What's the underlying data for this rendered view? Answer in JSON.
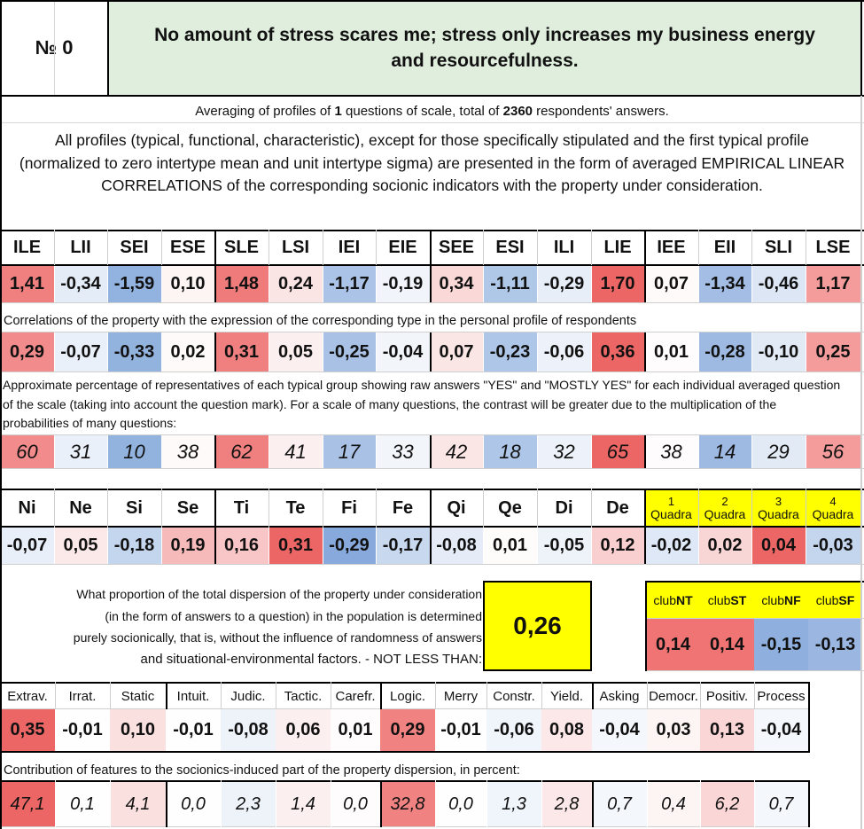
{
  "header": {
    "number_label": "№ 0",
    "title": "No amount of stress scares me; stress only increases my business energy and resourcefulness."
  },
  "averaging": {
    "prefix": "Averaging of profiles of ",
    "questions": "1",
    "middle": " questions of scale, total of ",
    "respondents": "2360",
    "suffix": " respondents' answers."
  },
  "intro_text": "All profiles (typical, functional, characteristic), except for those specifically stipulated and the first typical profile (normalized to zero intertype mean and unit intertype sigma) are presented in the form of averaged EMPIRICAL LINEAR CORRELATIONS of the corresponding socionic indicators with the property under consideration.",
  "colors": {
    "title_bg": "#dfeedd",
    "yellow": "#ffff00"
  },
  "types": {
    "headers": [
      "ILE",
      "LII",
      "SEI",
      "ESE",
      "SLE",
      "LSI",
      "IEI",
      "EIE",
      "SEE",
      "ESI",
      "ILI",
      "LIE",
      "IEE",
      "EII",
      "SLI",
      "LSE"
    ],
    "profile": [
      "1,41",
      "-0,34",
      "-1,59",
      "0,10",
      "1,48",
      "0,24",
      "-1,17",
      "-0,19",
      "0,34",
      "-1,11",
      "-0,29",
      "1,70",
      "0,07",
      "-1,34",
      "-0,46",
      "1,17"
    ],
    "profile_colors": [
      "#f08080",
      "#e4ecf8",
      "#92b2df",
      "#fdf4f4",
      "#ef7b7b",
      "#fbe4e4",
      "#aac3e6",
      "#f1f5fb",
      "#fad8d8",
      "#b0c8e8",
      "#e8eef8",
      "#ec6666",
      "#fefafa",
      "#a3bde4",
      "#dce6f4",
      "#f49b9b"
    ],
    "correlations_note": "Correlations of the property with the expression of the corresponding type in the personal profile of respondents",
    "correlations": [
      "0,29",
      "-0,07",
      "-0,33",
      "0,02",
      "0,31",
      "0,05",
      "-0,25",
      "-0,04",
      "0,07",
      "-0,23",
      "-0,06",
      "0,36",
      "0,01",
      "-0,28",
      "-0,10",
      "0,25"
    ],
    "correlation_colors": [
      "#f28c8c",
      "#eaf0f9",
      "#93b3df",
      "#fefafa",
      "#f08080",
      "#fcefef",
      "#a8c1e5",
      "#f2f6fb",
      "#fbe6e6",
      "#aec6e7",
      "#edf2fa",
      "#ec6666",
      "#fefcfc",
      "#9eb9e2",
      "#e2eaf6",
      "#f49b9b"
    ],
    "percentage_note": "Approximate percentage of representatives of each typical group showing raw answers \"YES\" and \"MOSTLY YES\" for each individual averaged question of the scale (taking into account the question mark). For a scale of many questions, the contrast will be greater due to the multiplication of the probabilities of many questions:",
    "percentages": [
      "60",
      "31",
      "10",
      "38",
      "62",
      "41",
      "17",
      "33",
      "42",
      "18",
      "32",
      "65",
      "38",
      "14",
      "29",
      "56"
    ],
    "percentage_colors": [
      "#f28c8c",
      "#eaf0f9",
      "#93b3df",
      "#fefafa",
      "#f08080",
      "#fcefef",
      "#a8c1e5",
      "#f2f6fb",
      "#fbe6e6",
      "#aec6e7",
      "#edf2fa",
      "#ec6666",
      "#fefcfc",
      "#9eb9e2",
      "#e2eaf6",
      "#f49b9b"
    ]
  },
  "functions": {
    "headers": [
      "Ni",
      "Ne",
      "Si",
      "Se",
      "Ti",
      "Te",
      "Fi",
      "Fe",
      "Qi",
      "Qe",
      "Di",
      "De"
    ],
    "values": [
      "-0,07",
      "0,05",
      "-0,18",
      "0,19",
      "0,16",
      "0,31",
      "-0,29",
      "-0,17",
      "-0,08",
      "0,01",
      "-0,05",
      "0,12"
    ],
    "value_colors": [
      "#e9eff9",
      "#fbe9e9",
      "#c4d5ee",
      "#f6baba",
      "#f8c6c6",
      "#ec6666",
      "#87a9dc",
      "#c8d8ef",
      "#e5ecf8",
      "#fefbfb",
      "#eef3fa",
      "#f9cfcf"
    ]
  },
  "quadras": {
    "headers": [
      {
        "num": "1",
        "label": "Quadra"
      },
      {
        "num": "2",
        "label": "Quadra"
      },
      {
        "num": "3",
        "label": "Quadra"
      },
      {
        "num": "4",
        "label": "Quadra"
      }
    ],
    "values": [
      "-0,02",
      "0,02",
      "0,04",
      "-0,03"
    ],
    "value_colors": [
      "#dfe8f6",
      "#f9d6d6",
      "#ec6666",
      "#c4d5ee"
    ]
  },
  "dispersion": {
    "text_lines": [
      "What proportion of the total dispersion of the property under consideration",
      "(in the form of answers to a question) in the population is determined",
      "purely socionically, that is, without the influence of randomness of answers",
      "and situational-environmental factors. - NOT LESS THAN:"
    ],
    "value": "0,26"
  },
  "clubs": {
    "headers": [
      {
        "prefix": "club",
        "bold": "NT"
      },
      {
        "prefix": "club",
        "bold": "ST"
      },
      {
        "prefix": "club",
        "bold": "NF"
      },
      {
        "prefix": "club",
        "bold": "SF"
      }
    ],
    "values": [
      "0,14",
      "0,14",
      "-0,15",
      "-0,13"
    ],
    "value_colors": [
      "#f07474",
      "#f07474",
      "#8fb0de",
      "#9bb7e1"
    ]
  },
  "traits": {
    "headers": [
      "Extrav.",
      "Irrat.",
      "Static",
      "Intuit.",
      "Judic.",
      "Tactic.",
      "Carefr.",
      "Logic.",
      "Merry",
      "Constr.",
      "Yield.",
      "Asking",
      "Democr.",
      "Positiv.",
      "Process"
    ],
    "values": [
      "0,35",
      "-0,01",
      "0,10",
      "-0,01",
      "-0,08",
      "0,06",
      "0,01",
      "0,29",
      "-0,01",
      "-0,06",
      "0,08",
      "-0,04",
      "0,03",
      "0,13",
      "-0,04"
    ],
    "value_colors": [
      "#ec6666",
      "#fefefe",
      "#fbe0e0",
      "#fefefe",
      "#eef3fa",
      "#fcefef",
      "#fefcfc",
      "#f18282",
      "#fefefe",
      "#f0f4fb",
      "#fce8e8",
      "#f4f7fc",
      "#fdf4f4",
      "#fad6d6",
      "#f4f7fc"
    ],
    "contribution_note": "Contribution of features to the sociоnics-induced part of the property dispersion, in percent:",
    "contributions": [
      "47,1",
      "0,1",
      "4,1",
      "0,0",
      "2,3",
      "1,4",
      "0,0",
      "32,8",
      "0,0",
      "1,3",
      "2,8",
      "0,7",
      "0,4",
      "6,2",
      "0,7"
    ],
    "contribution_colors": [
      "#ec6666",
      "#fefefe",
      "#fbe0e0",
      "#fefefe",
      "#eef3fa",
      "#fcefef",
      "#fefcfc",
      "#f18282",
      "#fefefe",
      "#f0f4fb",
      "#fce8e8",
      "#f4f7fc",
      "#fdf4f4",
      "#fad6d6",
      "#f4f7fc"
    ]
  }
}
